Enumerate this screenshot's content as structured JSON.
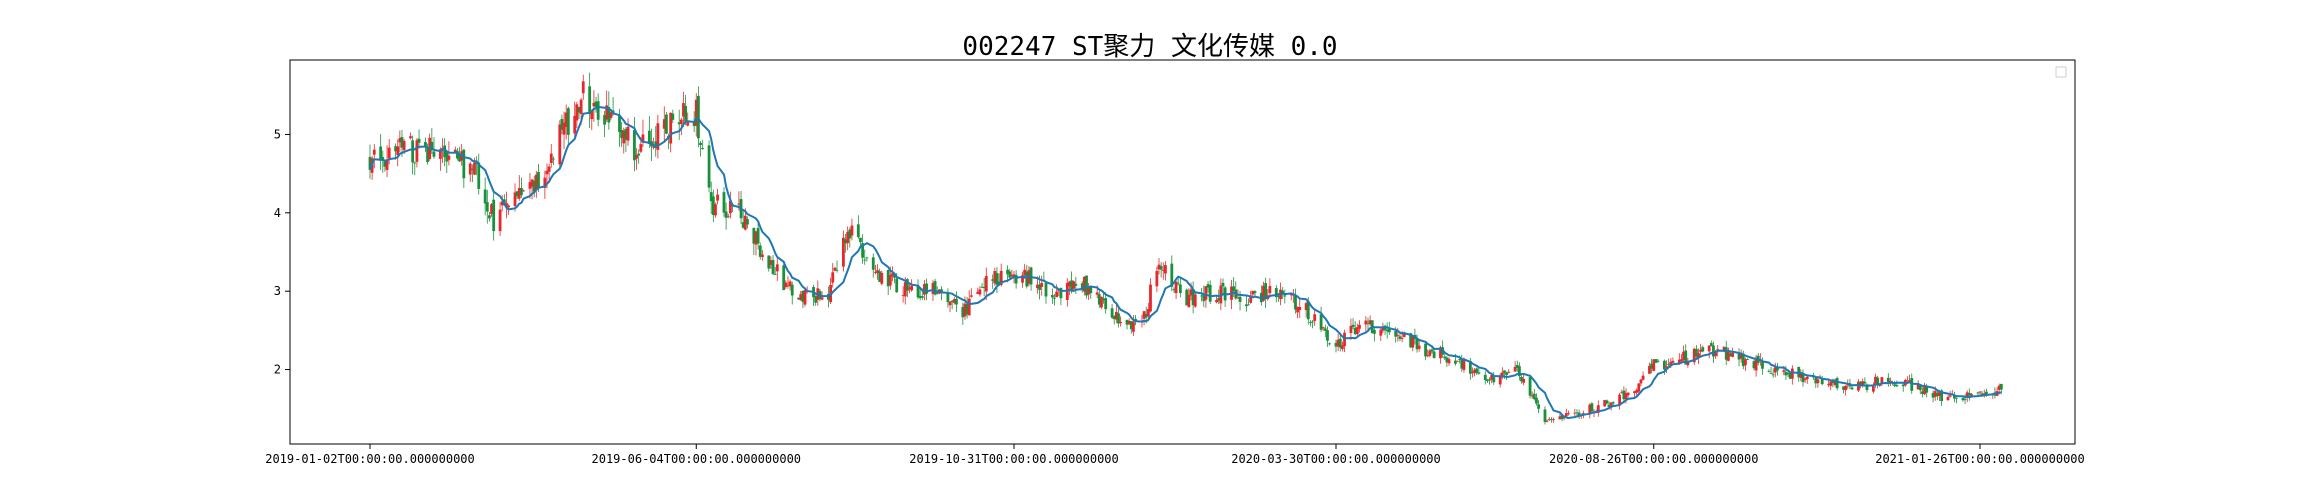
{
  "chart_data": {
    "type": "candlestick",
    "title": "002247 ST聚力 文化传媒 0.0",
    "xlabel": "",
    "ylabel": "",
    "x_ticks": [
      "2019-01-02T00:00:00.000000000",
      "2019-06-04T00:00:00.000000000",
      "2019-10-31T00:00:00.000000000",
      "2020-03-30T00:00:00.000000000",
      "2020-08-26T00:00:00.000000000",
      "2021-01-26T00:00:00.000000000"
    ],
    "y_ticks": [
      2,
      3,
      4,
      5
    ],
    "ylim": [
      1.05,
      5.95
    ],
    "grid": false,
    "legend": "top-right",
    "colors": {
      "up": "#e8272b",
      "down": "#18913a",
      "ma": "#1f77b4",
      "frame": "#000000"
    },
    "approx_close_path": [
      [
        "2019-01-02",
        4.65
      ],
      [
        "2019-01-15",
        4.8
      ],
      [
        "2019-02-01",
        4.78
      ],
      [
        "2019-02-20",
        4.55
      ],
      [
        "2019-03-01",
        3.9
      ],
      [
        "2019-03-12",
        4.2
      ],
      [
        "2019-03-25",
        4.5
      ],
      [
        "2019-04-05",
        5.2
      ],
      [
        "2019-04-12",
        5.55
      ],
      [
        "2019-04-22",
        5.2
      ],
      [
        "2019-05-06",
        4.85
      ],
      [
        "2019-05-20",
        5.1
      ],
      [
        "2019-06-04",
        5.3
      ],
      [
        "2019-06-12",
        4.1
      ],
      [
        "2019-06-25",
        3.95
      ],
      [
        "2019-07-10",
        3.3
      ],
      [
        "2019-07-22",
        2.9
      ],
      [
        "2019-08-05",
        2.95
      ],
      [
        "2019-08-14",
        3.8
      ],
      [
        "2019-08-28",
        3.2
      ],
      [
        "2019-09-10",
        3.05
      ],
      [
        "2019-09-24",
        3.0
      ],
      [
        "2019-10-08",
        2.75
      ],
      [
        "2019-10-22",
        3.2
      ],
      [
        "2019-11-05",
        3.2
      ],
      [
        "2019-11-18",
        2.95
      ],
      [
        "2019-12-02",
        3.1
      ],
      [
        "2019-12-16",
        2.7
      ],
      [
        "2019-12-30",
        2.55
      ],
      [
        "2020-01-07",
        3.4
      ],
      [
        "2020-01-20",
        2.9
      ],
      [
        "2020-02-05",
        3.0
      ],
      [
        "2020-02-19",
        2.9
      ],
      [
        "2020-03-04",
        3.05
      ],
      [
        "2020-03-18",
        2.7
      ],
      [
        "2020-03-30",
        2.3
      ],
      [
        "2020-04-10",
        2.55
      ],
      [
        "2020-04-24",
        2.5
      ],
      [
        "2020-05-11",
        2.25
      ],
      [
        "2020-05-25",
        2.15
      ],
      [
        "2020-06-08",
        1.85
      ],
      [
        "2020-06-22",
        2.05
      ],
      [
        "2020-07-06",
        1.35
      ],
      [
        "2020-07-20",
        1.45
      ],
      [
        "2020-08-03",
        1.55
      ],
      [
        "2020-08-17",
        1.75
      ],
      [
        "2020-08-26",
        2.05
      ],
      [
        "2020-09-10",
        2.15
      ],
      [
        "2020-09-24",
        2.25
      ],
      [
        "2020-10-15",
        2.05
      ],
      [
        "2020-10-29",
        1.95
      ],
      [
        "2020-11-12",
        1.85
      ],
      [
        "2020-11-26",
        1.75
      ],
      [
        "2020-12-10",
        1.85
      ],
      [
        "2020-12-24",
        1.8
      ],
      [
        "2021-01-11",
        1.62
      ],
      [
        "2021-01-26",
        1.7
      ],
      [
        "2021-02-05",
        1.75
      ]
    ]
  }
}
